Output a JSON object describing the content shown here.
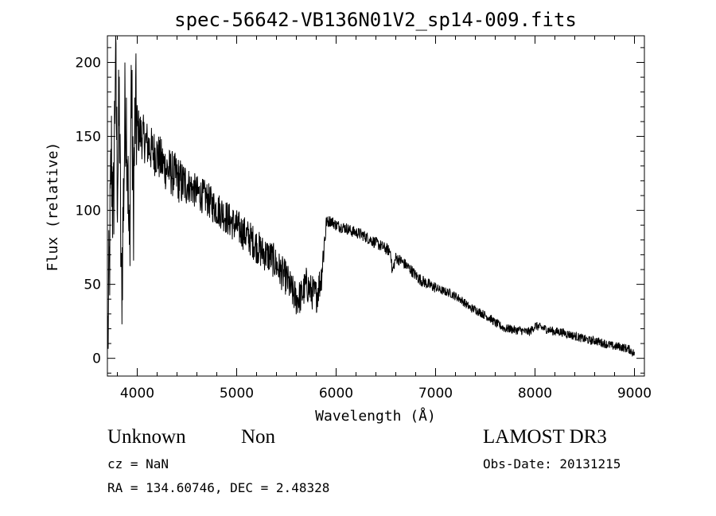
{
  "chart_data": {
    "type": "line",
    "title": "spec-56642-VB136N01V2_sp14-009.fits",
    "xlabel": "Wavelength (Å)",
    "ylabel": "Flux (relative)",
    "xlim": [
      3700,
      9100
    ],
    "ylim": [
      -12,
      218
    ],
    "xticks": [
      4000,
      5000,
      6000,
      7000,
      8000,
      9000
    ],
    "yticks": [
      0,
      50,
      100,
      150,
      200
    ],
    "grid": false,
    "series": [
      {
        "x": [
          3700,
          3720,
          3740,
          3760,
          3780,
          3800,
          3820,
          3840,
          3860,
          3880,
          3900,
          3920,
          3940,
          3960,
          3980,
          4000,
          4050,
          4100,
          4150,
          4200,
          4250,
          4300,
          4350,
          4400,
          4450,
          4500,
          4550,
          4600,
          4650,
          4700,
          4750,
          4800,
          4850,
          4900,
          4950,
          5000,
          5050,
          5100,
          5150,
          5200,
          5250,
          5300,
          5350,
          5400,
          5450,
          5500,
          5550,
          5600,
          5650,
          5700,
          5750,
          5800,
          5850,
          5900,
          5950,
          6000,
          6050,
          6100,
          6150,
          6200,
          6250,
          6300,
          6350,
          6400,
          6450,
          6500,
          6550,
          6563,
          6600,
          6650,
          6700,
          6750,
          6800,
          6850,
          6900,
          6950,
          7000,
          7050,
          7100,
          7150,
          7200,
          7250,
          7300,
          7350,
          7400,
          7450,
          7500,
          7550,
          7600,
          7650,
          7700,
          7750,
          7800,
          7850,
          7900,
          7950,
          8000,
          8050,
          8100,
          8150,
          8200,
          8250,
          8300,
          8350,
          8400,
          8450,
          8500,
          8550,
          8600,
          8650,
          8700,
          8750,
          8800,
          8850,
          8900,
          8950,
          9000
        ],
        "y": [
          0,
          60,
          140,
          90,
          205,
          120,
          170,
          40,
          100,
          175,
          150,
          60,
          190,
          100,
          165,
          155,
          150,
          145,
          140,
          138,
          132,
          128,
          125,
          122,
          118,
          118,
          115,
          112,
          110,
          108,
          104,
          101,
          99,
          95,
          92,
          89,
          86,
          83,
          80,
          76,
          72,
          70,
          68,
          63,
          58,
          54,
          46,
          40,
          42,
          50,
          45,
          42,
          55,
          92,
          93,
          90,
          89,
          88,
          86,
          85,
          84,
          82,
          80,
          78,
          76,
          74,
          72,
          58,
          68,
          66,
          63,
          60,
          56,
          53,
          51,
          49,
          48,
          46,
          45,
          44,
          42,
          40,
          37,
          34,
          33,
          31,
          29,
          27,
          24,
          22,
          20,
          20,
          19,
          19,
          18,
          18,
          22,
          21,
          20,
          19,
          18,
          18,
          17,
          16,
          15,
          14,
          13,
          12,
          12,
          11,
          10,
          9,
          8,
          8,
          7,
          6,
          3
        ]
      }
    ]
  },
  "footer": {
    "object_class": "Unknown",
    "subclass": "Non",
    "survey": "LAMOST DR3",
    "cz": "cz = NaN",
    "obs_date": "Obs-Date: 20131215",
    "coords": "RA = 134.60746, DEC =    2.48328"
  }
}
